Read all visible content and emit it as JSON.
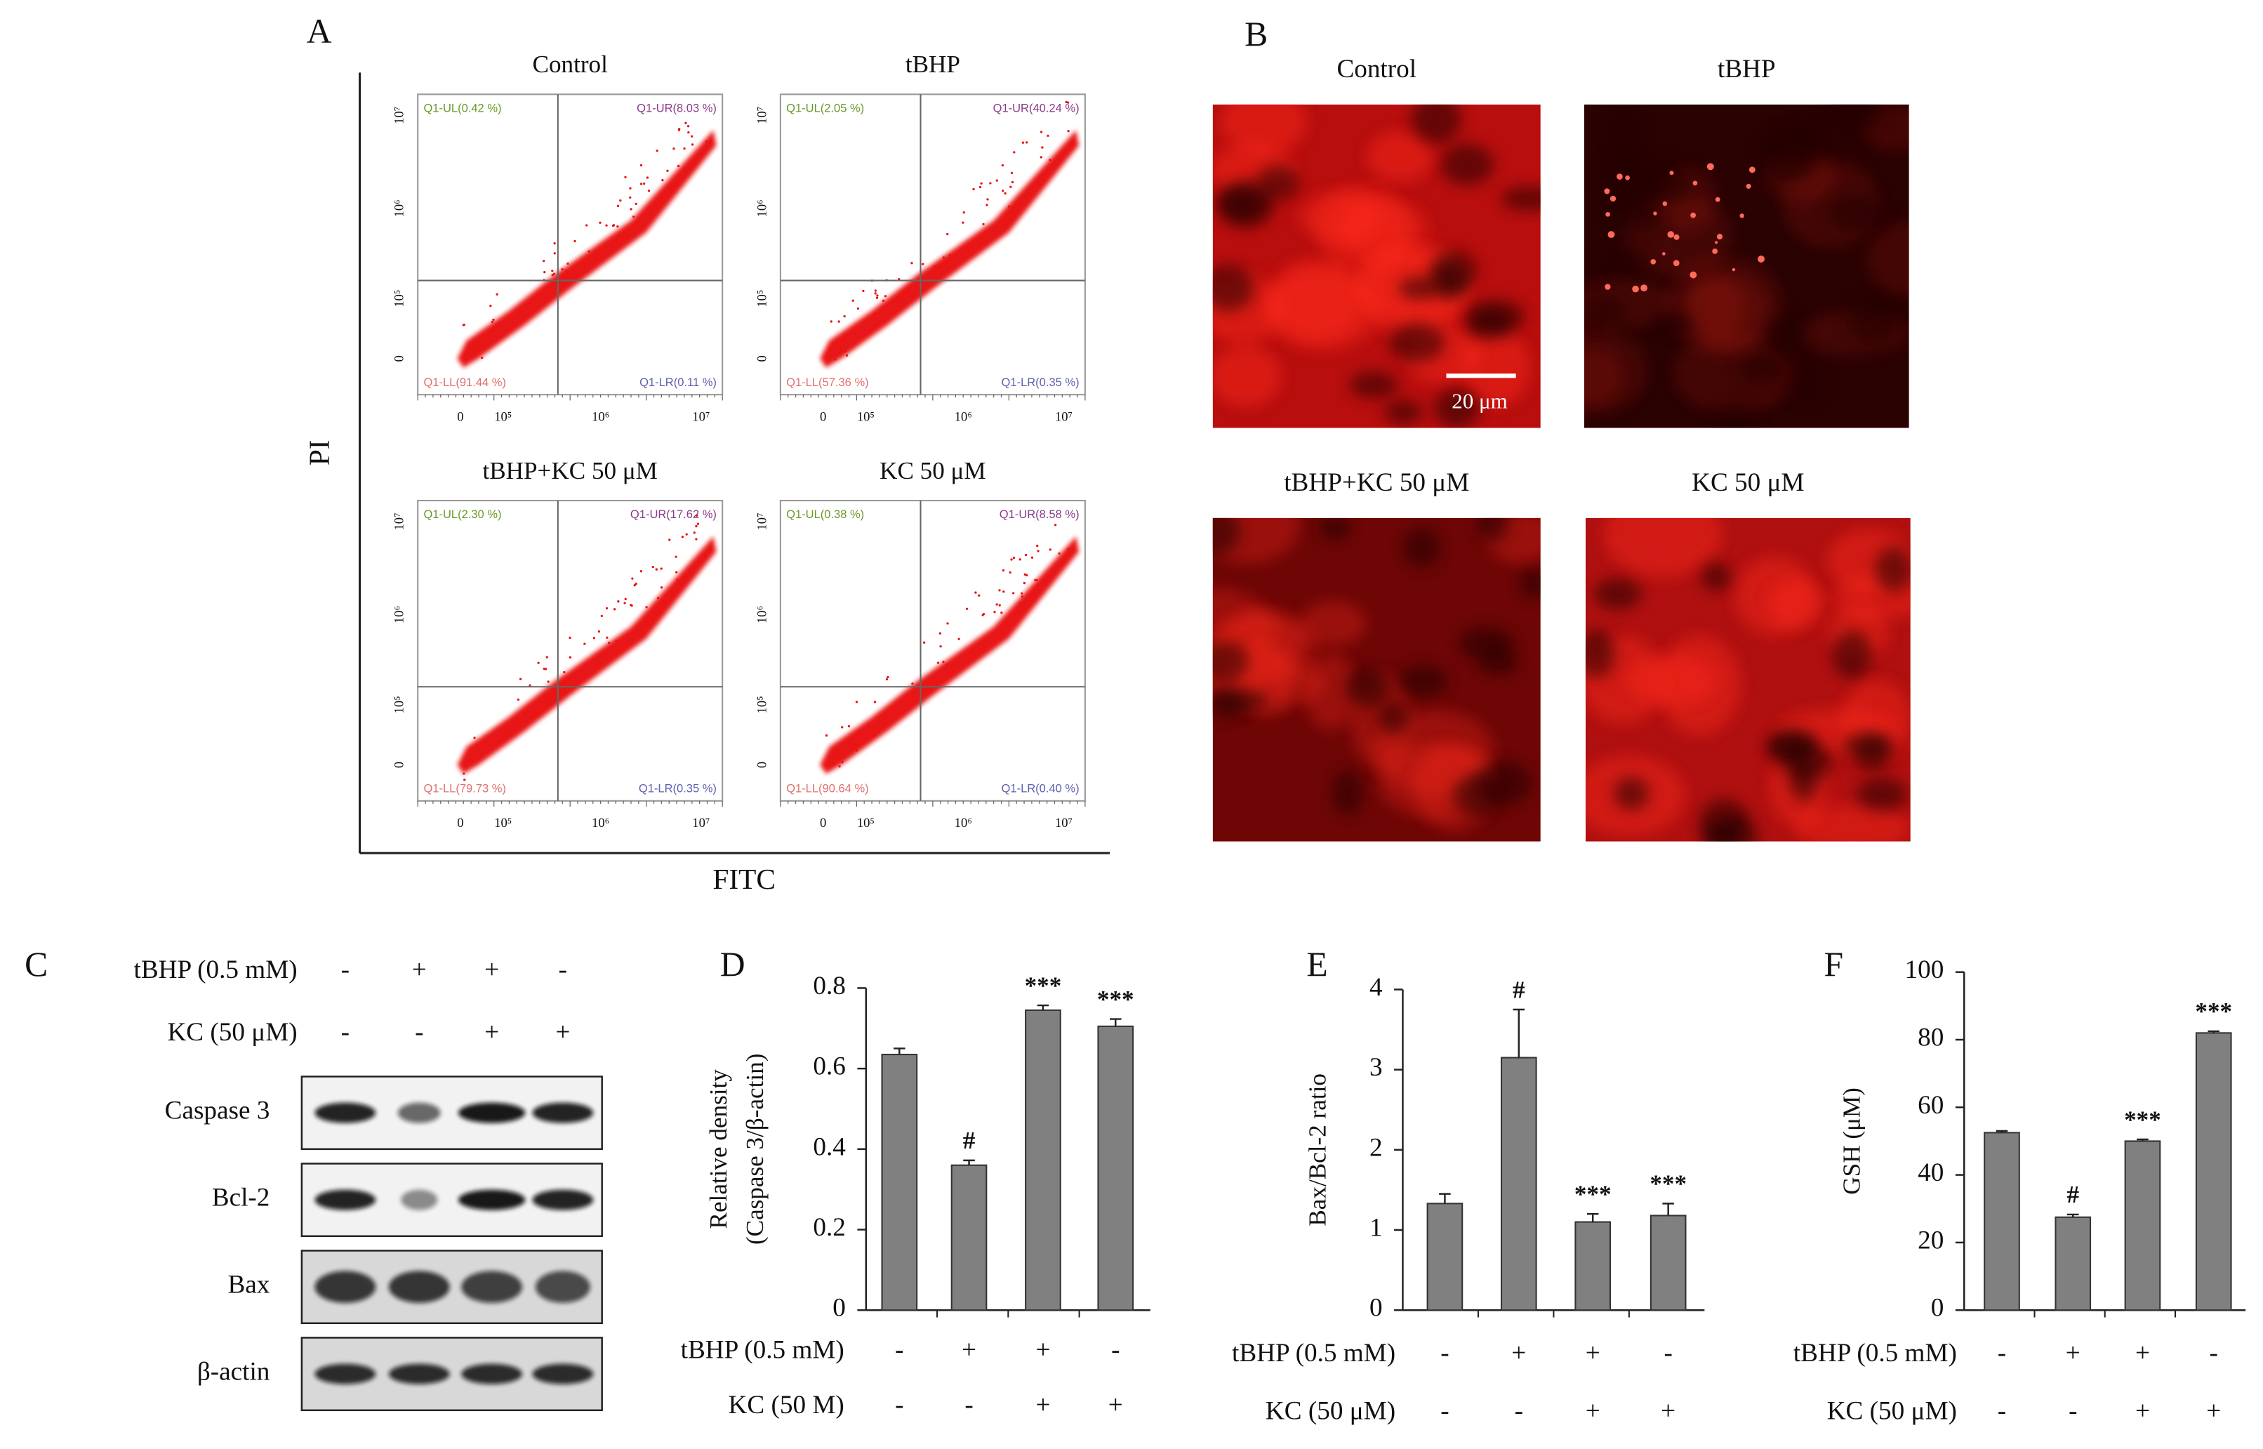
{
  "panel_a": {
    "label": "A",
    "y_label": "PI",
    "x_label": "FITC",
    "x_tick_labels": [
      "0",
      "10⁵",
      "10⁶",
      "10⁷"
    ],
    "y_tick_labels": [
      "0",
      "10⁵",
      "10⁶",
      "10⁷"
    ],
    "plots": [
      {
        "title": "Control",
        "quadrants": {
          "ul": "Q1-UL(0.42 %)",
          "ur": "Q1-UR(8.03 %)",
          "ll": "Q1-LL(91.44 %)",
          "lr": "Q1-LR(0.11 %)"
        }
      },
      {
        "title": "tBHP",
        "quadrants": {
          "ul": "Q1-UL(2.05 %)",
          "ur": "Q1-UR(40.24 %)",
          "ll": "Q1-LL(57.36 %)",
          "lr": "Q1-LR(0.35 %)"
        }
      },
      {
        "title": "tBHP+KC 50 μM",
        "quadrants": {
          "ul": "Q1-UL(2.30 %)",
          "ur": "Q1-UR(17.62 %)",
          "ll": "Q1-LL(79.73 %)",
          "lr": "Q1-LR(0.35 %)"
        }
      },
      {
        "title": "KC 50 μM",
        "quadrants": {
          "ul": "Q1-UL(0.38 %)",
          "ur": "Q1-UR(8.58 %)",
          "ll": "Q1-LL(90.64 %)",
          "lr": "Q1-LR(0.40 %)"
        }
      }
    ]
  },
  "panel_b": {
    "label": "B",
    "titles": [
      "Control",
      "tBHP",
      "tBHP+KC 50 μM",
      "KC 50 μM"
    ],
    "scale_bar": "20 μm"
  },
  "panel_c": {
    "label": "C",
    "conditions": [
      {
        "label": "tBHP (0.5 mM)",
        "signs": [
          "-",
          "+",
          "+",
          "-"
        ]
      },
      {
        "label": "KC (50 μM)",
        "signs": [
          "-",
          "-",
          "+",
          "+"
        ]
      }
    ],
    "blots": [
      "Caspase 3",
      "Bcl-2",
      "Bax",
      "β-actin"
    ]
  },
  "chart_data": [
    {
      "type": "bar",
      "panel_label": "D",
      "y_label": [
        "Relative density",
        "(Caspase 3/β-actin)"
      ],
      "values": [
        0.635,
        0.36,
        0.745,
        0.705
      ],
      "errors": [
        0.015,
        0.012,
        0.012,
        0.018
      ],
      "annotations": [
        null,
        "#",
        "***",
        "***"
      ],
      "color": "#808080",
      "ylim": [
        0,
        0.8
      ],
      "yticks": [
        0,
        0.2,
        0.4,
        0.6,
        0.8
      ],
      "conditions": [
        {
          "label": "tBHP (0.5 mM)",
          "signs": [
            "-",
            "+",
            "+",
            "-"
          ]
        },
        {
          "label": "KC (50 M)",
          "signs": [
            "-",
            "-",
            "+",
            "+"
          ]
        }
      ]
    },
    {
      "type": "bar",
      "panel_label": "E",
      "y_label": [
        "Bax/Bcl-2 ratio"
      ],
      "values": [
        1.33,
        3.15,
        1.1,
        1.18
      ],
      "errors": [
        0.12,
        0.6,
        0.1,
        0.15
      ],
      "annotations": [
        null,
        "#",
        "***",
        "***"
      ],
      "color": "#808080",
      "ylim": [
        0,
        4
      ],
      "yticks": [
        0,
        1,
        2,
        3,
        4
      ],
      "conditions": [
        {
          "label": "tBHP (0.5 mM)",
          "signs": [
            "-",
            "+",
            "+",
            "-"
          ]
        },
        {
          "label": "KC (50 μM)",
          "signs": [
            "-",
            "-",
            "+",
            "+"
          ]
        }
      ]
    },
    {
      "type": "bar",
      "panel_label": "F",
      "y_label": [
        "GSH (μM)"
      ],
      "values": [
        52.5,
        27.5,
        50,
        82
      ],
      "errors": [
        0.5,
        0.8,
        0.5,
        0.5
      ],
      "annotations": [
        null,
        "#",
        "***",
        "***"
      ],
      "color": "#808080",
      "ylim": [
        0,
        100
      ],
      "yticks": [
        0,
        20,
        40,
        60,
        80,
        100
      ],
      "conditions": [
        {
          "label": "tBHP (0.5 mM)",
          "signs": [
            "-",
            "+",
            "+",
            "-"
          ]
        },
        {
          "label": "KC (50 μM)",
          "signs": [
            "-",
            "-",
            "+",
            "+"
          ]
        }
      ]
    }
  ]
}
